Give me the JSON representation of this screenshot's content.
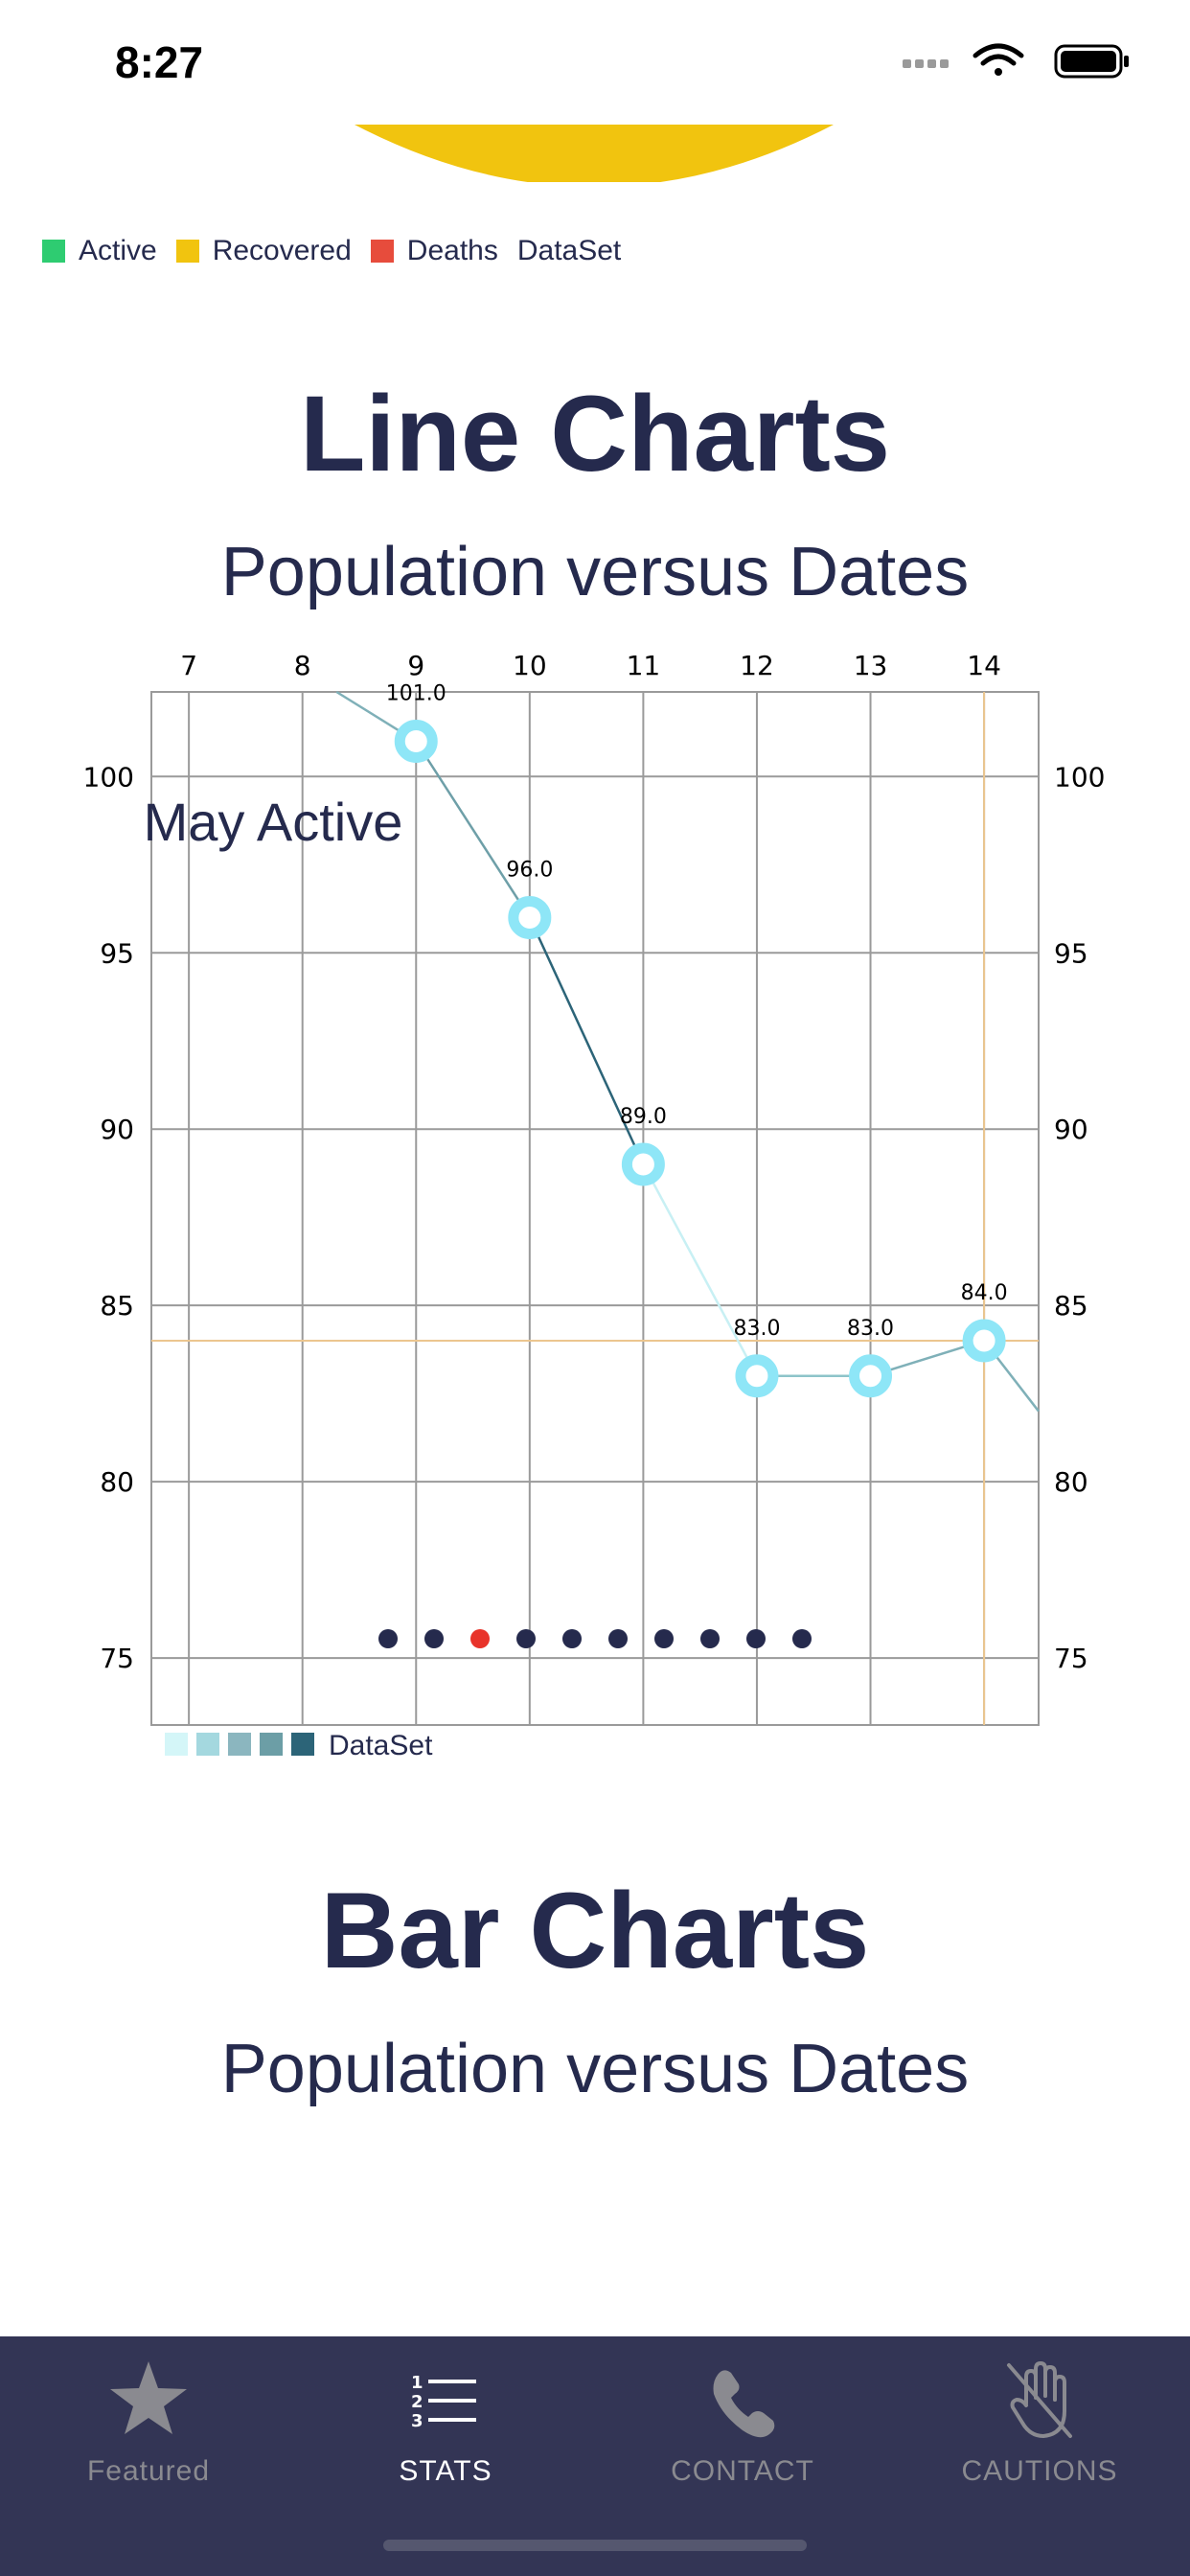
{
  "status_bar": {
    "time": "8:27"
  },
  "pie_legend": {
    "items": [
      {
        "label": "Active",
        "color": "#2ecc71"
      },
      {
        "label": "Recovered",
        "color": "#f1c40f"
      },
      {
        "label": "Deaths",
        "color": "#e74c3c"
      }
    ],
    "dataset_label": "DataSet"
  },
  "line_section": {
    "title": "Line Charts",
    "subtitle": "Population versus Dates"
  },
  "chart_data": {
    "type": "line",
    "title": "Line Charts",
    "subtitle": "Population versus Dates",
    "description": "May Active",
    "x_ticks": [
      7,
      8,
      9,
      10,
      11,
      12,
      13,
      14
    ],
    "y_ticks": [
      75,
      80,
      85,
      90,
      95,
      100
    ],
    "xlim": [
      6.67,
      14.48
    ],
    "ylim": [
      73.1,
      102.4
    ],
    "series": [
      {
        "name": "DataSet",
        "x": [
          8.3,
          9,
          10,
          11,
          12,
          13,
          14,
          14.48
        ],
        "y": [
          102.4,
          101.0,
          96.0,
          89.0,
          83.0,
          83.0,
          84.0,
          82.0
        ],
        "labeled_points": [
          {
            "x": 9,
            "y": 101.0,
            "label": "101.0"
          },
          {
            "x": 10,
            "y": 96.0,
            "label": "96.0"
          },
          {
            "x": 11,
            "y": 89.0,
            "label": "89.0"
          },
          {
            "x": 12,
            "y": 83.0,
            "label": "83.0"
          },
          {
            "x": 13,
            "y": 83.0,
            "label": "83.0"
          },
          {
            "x": 14,
            "y": 84.0,
            "label": "84.0"
          }
        ]
      }
    ],
    "highlight": {
      "x": 14,
      "y": 84
    },
    "legend": {
      "label": "DataSet",
      "colors": [
        "#d4f6f8",
        "#a4d8df",
        "#8bb6bf",
        "#6c9ea6",
        "#2c6478"
      ]
    },
    "page_indicator": {
      "count": 10,
      "current": 2
    }
  },
  "bar_section": {
    "title": "Bar Charts",
    "subtitle": "Population versus Dates"
  },
  "tabbar": {
    "tabs": [
      {
        "label": "Featured",
        "icon": "star-icon"
      },
      {
        "label": "STATS",
        "icon": "numbered-list-icon"
      },
      {
        "label": "CONTACT",
        "icon": "phone-icon"
      },
      {
        "label": "CAUTIONS",
        "icon": "no-touch-hand-icon"
      }
    ]
  }
}
